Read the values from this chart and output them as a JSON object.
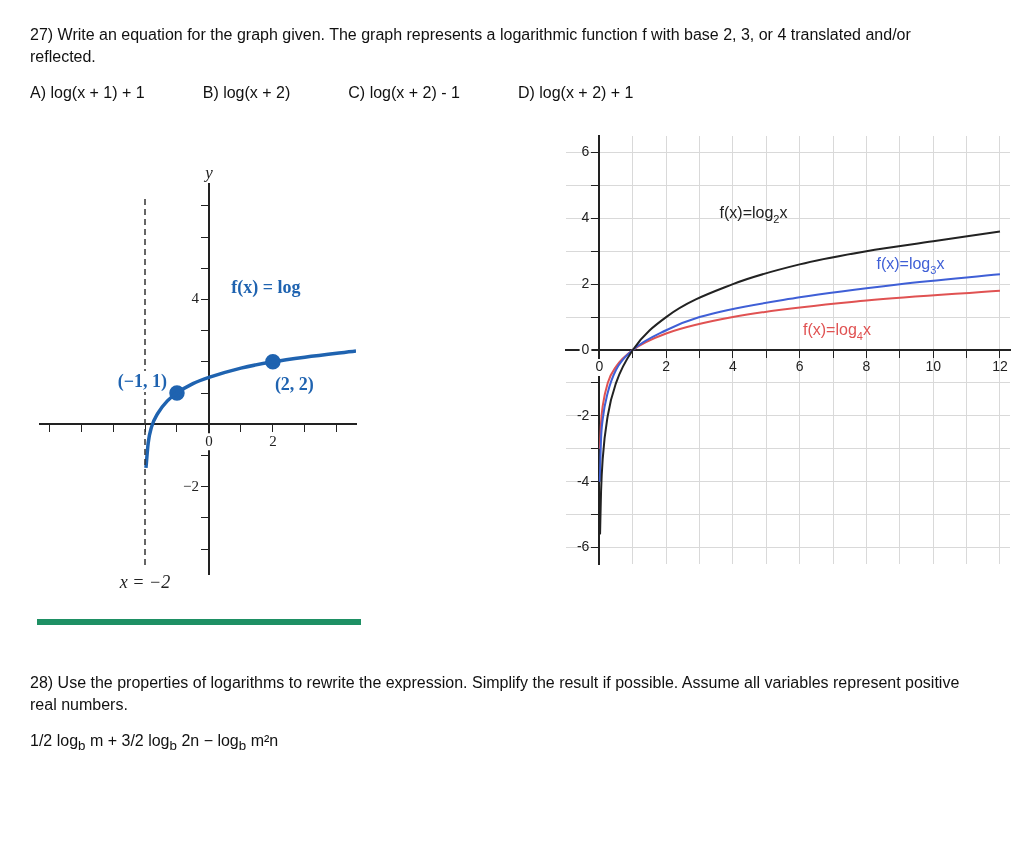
{
  "chart_data": [
    {
      "type": "other",
      "title": "27) Write an equation for the graph given. The graph represents a logarithmic function f with base 2, 3, or 4 translated and/or reflected.",
      "annotations": [
        "A) log(x + 1) + 1",
        "B) log(x + 2)",
        "C) log(x + 2) - 1",
        "D) log(x + 2) + 1"
      ]
    },
    {
      "type": "line",
      "ylabel": "y",
      "xlim": [
        -5.3,
        4.6
      ],
      "ylim": [
        -4.8,
        7.7
      ],
      "xticks": [
        {
          "value": -5,
          "label": null
        },
        {
          "value": -4,
          "label": null
        },
        {
          "value": -3,
          "label": null
        },
        {
          "value": -2,
          "label": null
        },
        {
          "value": -1,
          "label": null
        },
        {
          "value": 0,
          "label": "0"
        },
        {
          "value": 1,
          "label": null
        },
        {
          "value": 2,
          "label": "2"
        },
        {
          "value": 3,
          "label": null
        },
        {
          "value": 4,
          "label": null
        }
      ],
      "yticks": [
        {
          "value": -4,
          "label": null
        },
        {
          "value": -3,
          "label": null
        },
        {
          "value": -2,
          "label": "−2"
        },
        {
          "value": -1,
          "label": null
        },
        {
          "value": 1,
          "label": null
        },
        {
          "value": 2,
          "label": null
        },
        {
          "value": 3,
          "label": null
        },
        {
          "value": 4,
          "label": "4"
        },
        {
          "value": 5,
          "label": null
        },
        {
          "value": 6,
          "label": null
        },
        {
          "value": 7,
          "label": null
        }
      ],
      "grid": false,
      "marker": "none",
      "series": [
        {
          "name": "f(x) = log",
          "color": "#1f63b0",
          "x": [
            -1.97,
            -1.9,
            -1.8,
            -1.6,
            -1.3,
            -1,
            -0.5,
            0,
            1,
            2,
            3,
            4.6
          ],
          "values": [
            -1.4,
            -0.6,
            -0.1,
            0.35,
            0.75,
            1,
            1.3,
            1.5,
            1.8,
            2,
            2.15,
            2.35
          ]
        },
        {
          "type": "scatter",
          "marker": "circle",
          "color": "#1f63b0",
          "x": [
            -1,
            2
          ],
          "values": [
            1,
            2
          ]
        }
      ],
      "ref_lines": [
        {
          "axis": "x",
          "value": -2,
          "label": "x = −2",
          "line_style": "dashed",
          "color": "#333333"
        }
      ],
      "annotations": [
        {
          "text": "(−1, 1)",
          "x": -1,
          "y": 1
        },
        {
          "text": "(2, 2)",
          "x": 2,
          "y": 2
        }
      ]
    },
    {
      "type": "line",
      "xlim": [
        -1,
        12.3
      ],
      "ylim": [
        -6.5,
        6.5
      ],
      "xticks": [
        0,
        {
          "value": 1,
          "label": null
        },
        2,
        {
          "value": 3,
          "label": null
        },
        4,
        {
          "value": 5,
          "label": null
        },
        6,
        {
          "value": 7,
          "label": null
        },
        8,
        {
          "value": 9,
          "label": null
        },
        10,
        {
          "value": 11,
          "label": null
        },
        12
      ],
      "yticks": [
        -6,
        {
          "value": -5,
          "label": null
        },
        -4,
        {
          "value": -3,
          "label": null
        },
        -2,
        {
          "value": -1,
          "label": null
        },
        0,
        {
          "value": 1,
          "label": null
        },
        2,
        {
          "value": 3,
          "label": null
        },
        4,
        {
          "value": 5,
          "label": null
        },
        6
      ],
      "grid": true,
      "marker": "none",
      "series": [
        {
          "name": "f(x)=log$_{2}$x",
          "color": "#222222",
          "x": [
            0.02,
            0.05,
            0.1,
            0.25,
            0.5,
            1,
            2,
            4,
            6,
            8,
            10,
            12
          ],
          "values": [
            -5.6,
            -4.3,
            -3.3,
            -2,
            -1,
            0,
            1,
            2,
            2.6,
            3,
            3.3,
            3.6
          ]
        },
        {
          "name": "f(x)=log$_{3}$x",
          "color": "#3f5fd6",
          "x": [
            0.013,
            0.05,
            0.1,
            0.25,
            0.5,
            1,
            2,
            3,
            6,
            9,
            12
          ],
          "values": [
            -4,
            -2.7,
            -2.1,
            -1.3,
            -0.6,
            0,
            0.6,
            1,
            1.6,
            2,
            2.3
          ]
        },
        {
          "name": "f(x)=log$_{4}$x",
          "color": "#e05252",
          "x": [
            0.016,
            0.05,
            0.1,
            0.25,
            0.5,
            1,
            2,
            4,
            8,
            12
          ],
          "values": [
            -3,
            -2.2,
            -1.7,
            -1,
            -0.5,
            0,
            0.5,
            1,
            1.5,
            1.8
          ]
        }
      ]
    },
    {
      "type": "other",
      "title": "28) Use the properties of logarithms to rewrite the expression. Simplify the result if possible. Assume all variables represent positive real numbers.",
      "annotations": [
        "1/2 log$_{b}$ m + 3/2 log$_{b}$ 2n − log$_{b}$ m²n"
      ]
    }
  ]
}
